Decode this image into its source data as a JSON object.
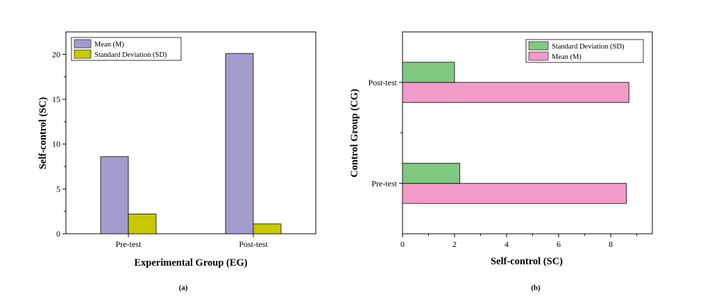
{
  "colors": {
    "mean_bar": "#a29bcc",
    "sd_bar_a": "#c9c900",
    "sd_bar_b": "#80c880",
    "mean_bar_b": "#f29ac8"
  },
  "chart_data": [
    {
      "type": "bar",
      "orientation": "vertical",
      "caption": "(a)",
      "categories": [
        "Pre-test",
        "Post-test"
      ],
      "series": [
        {
          "name": "Mean (M)",
          "values": [
            8.6,
            20.1
          ],
          "color": "#a29bcc"
        },
        {
          "name": "Standard Deviation (SD)",
          "values": [
            2.2,
            1.1
          ],
          "color": "#c9c900"
        }
      ],
      "xlabel": "Experimental Group (EG)",
      "ylabel": "Self-control (SC)",
      "ylim": [
        0,
        22.5
      ],
      "yticks": [
        0,
        5,
        10,
        15,
        20
      ],
      "legend": "top-left",
      "grid": false
    },
    {
      "type": "bar",
      "orientation": "horizontal",
      "caption": "(b)",
      "categories": [
        "Pre-test",
        "Post-test"
      ],
      "series": [
        {
          "name": "Mean (M)",
          "values": [
            8.6,
            8.7
          ],
          "color": "#f29ac8"
        },
        {
          "name": "Standard Deviation (SD)",
          "values": [
            2.2,
            2.0
          ],
          "color": "#80c880"
        }
      ],
      "legend_order": [
        "Standard Deviation (SD)",
        "Mean (M)"
      ],
      "xlabel": "Self-control (SC)",
      "ylabel": "Control Group (CG)",
      "xlim": [
        0,
        9.6
      ],
      "xticks": [
        0,
        2,
        4,
        6,
        8
      ],
      "legend": "top-right",
      "grid": false
    }
  ]
}
